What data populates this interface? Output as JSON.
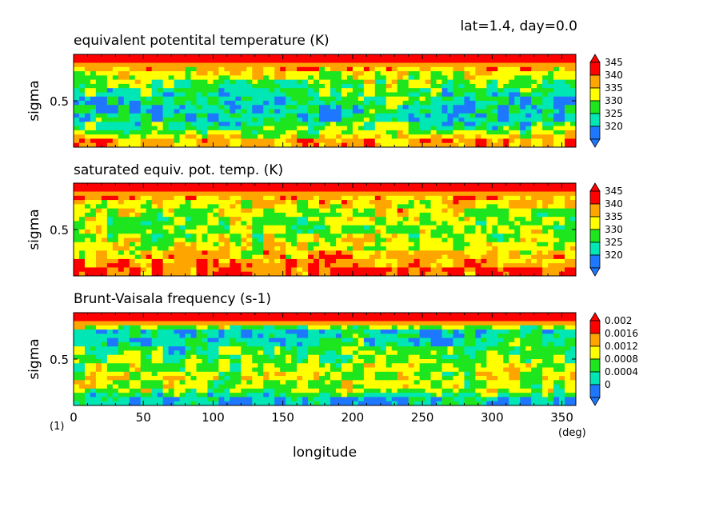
{
  "header": "lat=1.4, day=0.0",
  "x_axis": {
    "label": "longitude",
    "unit": "(deg)",
    "ticks": [
      "0",
      "50",
      "100",
      "150",
      "200",
      "250",
      "300",
      "350"
    ],
    "range": [
      0,
      360
    ]
  },
  "corner_note": "(1)",
  "colors": {
    "blue": "#1e78ff",
    "cyan": "#00e6b4",
    "green": "#1ee61e",
    "yellow": "#ffff00",
    "orange": "#ffa500",
    "red": "#ff0000"
  },
  "panels": [
    {
      "title": "equivalent potentital temperature (K)",
      "ylabel": "sigma",
      "ytick": "0.5",
      "colorbar_labels": [
        "345",
        "340",
        "335",
        "330",
        "325",
        "320"
      ]
    },
    {
      "title": "saturated equiv. pot. temp. (K)",
      "ylabel": "sigma",
      "ytick": "0.5",
      "colorbar_labels": [
        "345",
        "340",
        "335",
        "330",
        "325",
        "320"
      ]
    },
    {
      "title": "Brunt-Vaisala frequency (s-1)",
      "ylabel": "sigma",
      "ytick": "0.5",
      "colorbar_labels": [
        "0.002",
        "0.0016",
        "0.0012",
        "0.0008",
        "0.0004",
        "0"
      ]
    }
  ],
  "chart_data": [
    {
      "type": "heatmap",
      "title": "equivalent potentital temperature (K)",
      "xlabel": "longitude",
      "ylabel": "sigma",
      "xlim": [
        0,
        360
      ],
      "ylim": [
        0,
        1
      ],
      "levels": [
        320,
        325,
        330,
        335,
        340,
        345
      ],
      "y": [
        0.92,
        0.8,
        0.67,
        0.55,
        0.42,
        0.3,
        0.17,
        0.07
      ],
      "x": [
        0,
        45,
        90,
        135,
        180,
        225,
        270,
        315,
        360
      ],
      "values": [
        [
          346,
          346,
          346,
          346,
          346,
          346,
          346,
          346,
          346
        ],
        [
          339,
          338,
          337,
          338,
          339,
          337,
          338,
          338,
          339
        ],
        [
          334,
          333,
          332,
          333,
          333,
          336,
          333,
          333,
          334
        ],
        [
          330,
          329,
          328,
          327,
          329,
          333,
          328,
          327,
          330
        ],
        [
          327,
          328,
          325,
          324,
          326,
          331,
          325,
          326,
          327
        ],
        [
          329,
          330,
          326,
          326,
          327,
          332,
          326,
          327,
          329
        ],
        [
          334,
          333,
          332,
          332,
          334,
          335,
          332,
          333,
          334
        ],
        [
          343,
          340,
          341,
          340,
          343,
          342,
          341,
          340,
          343
        ]
      ]
    },
    {
      "type": "heatmap",
      "title": "saturated equiv. pot. temp. (K)",
      "xlabel": "longitude",
      "ylabel": "sigma",
      "xlim": [
        0,
        360
      ],
      "ylim": [
        0,
        1
      ],
      "levels": [
        320,
        325,
        330,
        335,
        340,
        345
      ],
      "y": [
        0.92,
        0.8,
        0.67,
        0.55,
        0.42,
        0.3,
        0.17,
        0.07
      ],
      "x": [
        0,
        45,
        90,
        135,
        180,
        225,
        270,
        315,
        360
      ],
      "values": [
        [
          346,
          346,
          346,
          346,
          346,
          346,
          346,
          346,
          346
        ],
        [
          340,
          340,
          339,
          340,
          340,
          341,
          340,
          339,
          340
        ],
        [
          336,
          335,
          336,
          336,
          335,
          338,
          335,
          334,
          336
        ],
        [
          334,
          333,
          336,
          335,
          333,
          337,
          334,
          333,
          334
        ],
        [
          336,
          334,
          337,
          335,
          335,
          338,
          333,
          335,
          336
        ],
        [
          338,
          338,
          338,
          337,
          337,
          339,
          338,
          338,
          338
        ],
        [
          343,
          340,
          342,
          341,
          344,
          341,
          341,
          340,
          343
        ],
        [
          346,
          344,
          345,
          344,
          346,
          345,
          344,
          344,
          346
        ]
      ]
    },
    {
      "type": "heatmap",
      "title": "Brunt-Vaisala frequency (s-1)",
      "xlabel": "longitude",
      "ylabel": "sigma",
      "xlim": [
        0,
        360
      ],
      "ylim": [
        0,
        1
      ],
      "levels": [
        0,
        0.0004,
        0.0008,
        0.0012,
        0.0016,
        0.002
      ],
      "y": [
        0.92,
        0.8,
        0.67,
        0.55,
        0.42,
        0.3,
        0.17,
        0.07
      ],
      "x": [
        0,
        45,
        90,
        135,
        180,
        225,
        270,
        315,
        360
      ],
      "values": [
        [
          0.0022,
          0.0022,
          0.0022,
          0.0022,
          0.0022,
          0.0022,
          0.0022,
          0.0022,
          0.0022
        ],
        [
          0.0006,
          0.0005,
          0.0006,
          0.0005,
          0.0006,
          0.0005,
          0.0006,
          0.0005,
          0.0006
        ],
        [
          0.0009,
          0.0007,
          0.0008,
          0.0006,
          0.0009,
          0.0008,
          0.0007,
          0.0009,
          0.0009
        ],
        [
          0.001,
          0.0011,
          0.0008,
          0.0012,
          0.0009,
          0.0011,
          0.0009,
          0.001,
          0.001
        ],
        [
          0.0012,
          0.0013,
          0.001,
          0.0011,
          0.0013,
          0.0012,
          0.0011,
          0.0012,
          0.0012
        ],
        [
          0.0013,
          0.0014,
          0.0012,
          0.0013,
          0.0014,
          0.0013,
          0.0012,
          0.0014,
          0.0013
        ],
        [
          0.0011,
          0.0014,
          0.0012,
          0.0013,
          0.0011,
          0.0014,
          0.0013,
          0.0012,
          0.0011
        ],
        [
          0.0005,
          0.0004,
          0.0006,
          0.0004,
          0.0005,
          0.0004,
          0.0006,
          0.0004,
          0.0005
        ]
      ]
    }
  ]
}
